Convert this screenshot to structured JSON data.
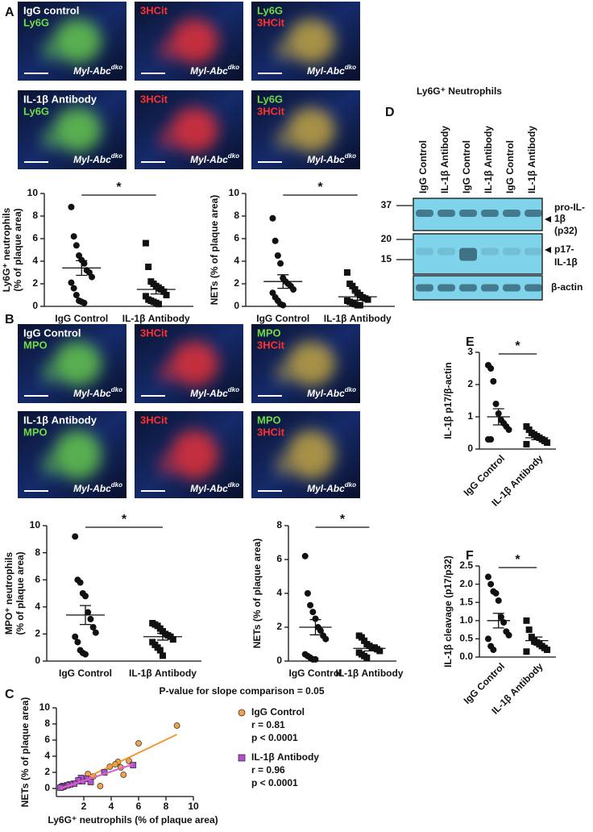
{
  "panels": [
    "A",
    "B",
    "C",
    "D",
    "E",
    "F"
  ],
  "strain": {
    "name": "Myl-Abc",
    "sup": "dko"
  },
  "microscopy": [
    {
      "rows": [
        [
          {
            "labels": [
              {
                "text": "IgG control",
                "color": "#ffffff"
              },
              {
                "text": "Ly6G",
                "color": "#6fdc4a"
              }
            ]
          },
          {
            "labels": [
              {
                "text": "3HCit",
                "color": "#ff3030"
              }
            ]
          },
          {
            "labels": [
              {
                "text": "Ly6G",
                "color": "#6fdc4a"
              },
              {
                "text": "3HCit",
                "color": "#ff3030"
              }
            ]
          }
        ],
        [
          {
            "labels": [
              {
                "text": "IL-1β Antibody",
                "color": "#ffffff"
              },
              {
                "text": "Ly6G",
                "color": "#6fdc4a"
              }
            ]
          },
          {
            "labels": [
              {
                "text": "3HCit",
                "color": "#ff3030"
              }
            ]
          },
          {
            "labels": [
              {
                "text": "Ly6G",
                "color": "#6fdc4a"
              },
              {
                "text": "3HCit",
                "color": "#ff3030"
              }
            ]
          }
        ]
      ]
    },
    {
      "rows": [
        [
          {
            "labels": [
              {
                "text": "IgG Control",
                "color": "#ffffff"
              },
              {
                "text": "MPO",
                "color": "#6fdc4a"
              }
            ]
          },
          {
            "labels": [
              {
                "text": "3HCit",
                "color": "#ff3030"
              }
            ]
          },
          {
            "labels": [
              {
                "text": "MPO",
                "color": "#6fdc4a"
              },
              {
                "text": "3HCit",
                "color": "#ff3030"
              }
            ]
          }
        ],
        [
          {
            "labels": [
              {
                "text": "IL-1β Antibody",
                "color": "#ffffff"
              },
              {
                "text": "MPO",
                "color": "#6fdc4a"
              }
            ]
          },
          {
            "labels": [
              {
                "text": "3HCit",
                "color": "#ff3030"
              }
            ]
          },
          {
            "labels": [
              {
                "text": "MPO",
                "color": "#6fdc4a"
              },
              {
                "text": "3HCit",
                "color": "#ff3030"
              }
            ]
          }
        ]
      ]
    }
  ],
  "western_blot": {
    "title": "Ly6G⁺ Neutrophils",
    "lanes": [
      "IgG Control",
      "IL-1β Antibody",
      "IgG Control",
      "IL-1β Antibody",
      "IgG Control",
      "IL-1β Antibody"
    ],
    "markers": [
      "37",
      "20",
      "15"
    ],
    "bands": [
      [
        "pro-IL-",
        "1β",
        "(p32)"
      ],
      [
        "p17-",
        "IL-1β"
      ],
      [
        "β-actin"
      ]
    ]
  },
  "chart_data": [
    {
      "type": "dotplot",
      "categories": [
        "IgG Control",
        "IL-1β Antibody"
      ],
      "ylabel": [
        "Ly6G⁺ neutrophils",
        "(% of plaque area)"
      ],
      "ylim": [
        0,
        10
      ],
      "yticks": [
        0,
        2,
        4,
        6,
        8,
        10
      ],
      "markers": [
        "circle",
        "square"
      ],
      "significance": "*",
      "label_rotation": 0,
      "values": [
        [
          8.8,
          6.2,
          5.4,
          4.5,
          4.1,
          3.8,
          3.2,
          3.0,
          2.6,
          2.1,
          1.6,
          1.0,
          0.5,
          0.4,
          0.3
        ],
        [
          5.6,
          3.5,
          2.2,
          2.0,
          1.8,
          1.6,
          1.5,
          1.3,
          1.0,
          0.9,
          0.6,
          0.5,
          0.4,
          0.3,
          0.2
        ]
      ],
      "means": [
        3.4,
        1.5
      ],
      "errors": [
        0.65,
        0.4
      ]
    },
    {
      "type": "dotplot",
      "categories": [
        "IgG Control",
        "IL-1β Antibody"
      ],
      "ylabel": [
        "NETs (% of plaque area)"
      ],
      "ylim": [
        0,
        10
      ],
      "yticks": [
        0,
        2,
        4,
        6,
        8,
        10
      ],
      "markers": [
        "circle",
        "square"
      ],
      "significance": "*",
      "label_rotation": 0,
      "values": [
        [
          7.8,
          5.8,
          4.5,
          3.8,
          2.5,
          2.2,
          2.0,
          1.8,
          1.5,
          1.2,
          0.8,
          0.5,
          0.2,
          0.1
        ],
        [
          3.0,
          2.0,
          1.8,
          1.5,
          1.2,
          1.0,
          0.8,
          0.7,
          0.6,
          0.5,
          0.4,
          0.3,
          0.2,
          0.1,
          0.1
        ]
      ],
      "means": [
        2.2,
        0.85
      ],
      "errors": [
        0.6,
        0.3
      ]
    },
    {
      "type": "dotplot",
      "categories": [
        "IgG Control",
        "IL-1β Antibody"
      ],
      "ylabel": [
        "MPO⁺ neutrophils",
        "(% of plaque area)"
      ],
      "ylim": [
        0,
        10
      ],
      "yticks": [
        0,
        2,
        4,
        6,
        8,
        10
      ],
      "markers": [
        "circle",
        "square"
      ],
      "significance": "*",
      "label_rotation": 0,
      "values": [
        [
          9.2,
          6.0,
          5.8,
          5.0,
          4.8,
          3.6,
          3.1,
          2.5,
          2.1,
          1.8,
          1.4,
          0.8,
          0.6,
          0.5
        ],
        [
          2.8,
          2.7,
          2.6,
          2.4,
          2.2,
          2.0,
          1.9,
          1.8,
          1.6,
          1.4,
          1.2,
          1.0,
          0.8,
          0.4
        ]
      ],
      "means": [
        3.4,
        1.8
      ],
      "errors": [
        0.7,
        0.25
      ]
    },
    {
      "type": "dotplot",
      "categories": [
        "IgG Control",
        "IL-1β Antibody"
      ],
      "ylabel": [
        "NETs (% of plaque area)"
      ],
      "ylim": [
        0,
        8
      ],
      "yticks": [
        0,
        2,
        4,
        6,
        8
      ],
      "markers": [
        "circle",
        "square"
      ],
      "significance": "*",
      "label_rotation": 0,
      "values": [
        [
          6.2,
          4.0,
          3.3,
          2.9,
          2.5,
          2.0,
          1.8,
          1.5,
          1.3,
          0.4,
          0.3,
          0.2,
          0.1,
          0.1
        ],
        [
          1.5,
          1.4,
          1.2,
          1.0,
          0.9,
          0.8,
          0.8,
          0.7,
          0.6,
          0.5,
          0.4,
          0.3,
          0.2
        ]
      ],
      "means": [
        2.0,
        0.75
      ],
      "errors": [
        0.45,
        0.15
      ]
    },
    {
      "type": "dotplot",
      "categories": [
        "IgG Control",
        "IL-1β Antibody"
      ],
      "ylabel": [
        "IL-1β p17/β-actin"
      ],
      "ylim": [
        0,
        3
      ],
      "yticks": [
        0,
        1,
        2,
        3
      ],
      "markers": [
        "circle",
        "square"
      ],
      "significance": "*",
      "label_rotation": 45,
      "values": [
        [
          2.6,
          2.5,
          2.1,
          1.4,
          1.1,
          0.9,
          0.8,
          0.7,
          0.6,
          0.3,
          0.3
        ],
        [
          0.7,
          0.6,
          0.5,
          0.45,
          0.4,
          0.35,
          0.3,
          0.25,
          0.2,
          0.15
        ]
      ],
      "means": [
        1.0,
        0.35
      ],
      "errors": [
        0.25,
        0.06
      ]
    },
    {
      "type": "dotplot",
      "categories": [
        "IgG Control",
        "IL-1β Antibody"
      ],
      "ylabel": [
        "IL-1β cleavage (p17/p32)"
      ],
      "ylim": [
        0,
        2.5
      ],
      "yticks": [
        {
          "value": 0,
          "label": "0.0"
        },
        {
          "value": 0.5,
          "label": "0.5"
        },
        {
          "value": 1,
          "label": "1.0"
        },
        {
          "value": 1.5,
          "label": "1.5"
        },
        {
          "value": 2,
          "label": "2.0"
        },
        {
          "value": 2.5,
          "label": "2.5"
        }
      ],
      "markers": [
        "circle",
        "square"
      ],
      "significance": "*",
      "label_rotation": 45,
      "values": [
        [
          2.2,
          2.0,
          1.8,
          1.75,
          1.55,
          1.1,
          0.95,
          0.7,
          0.6,
          0.5,
          0.3,
          0.2
        ],
        [
          1.0,
          0.75,
          0.55,
          0.45,
          0.4,
          0.35,
          0.3,
          0.25,
          0.2,
          0.15
        ]
      ],
      "means": [
        1.0,
        0.45
      ],
      "errors": [
        0.2,
        0.1
      ]
    },
    {
      "type": "scatter",
      "title": "P-value for slope comparison = 0.05",
      "xlabel": "Ly6G⁺ neutrophils (% of plaque area)",
      "ylabel": [
        "NETs (% of plaque area)"
      ],
      "xlim": [
        0,
        10
      ],
      "xticks": [
        2,
        4,
        6,
        8,
        10
      ],
      "ylim": [
        -1,
        10
      ],
      "yticks": [
        0,
        2,
        4,
        6,
        8,
        10
      ],
      "series": [
        {
          "name": "IgG Control",
          "color": "#f4a24a",
          "line_color": "#f39a30",
          "marker": "circle",
          "stats": [
            "r = 0.81",
            "p < 0.0001"
          ],
          "x": [
            8.8,
            6.0,
            5.3,
            4.7,
            4.9,
            4.5,
            4.3,
            3.9,
            3.2,
            2.7,
            2.3,
            1.6,
            1.0,
            0.6,
            0.3
          ],
          "y": [
            7.8,
            5.6,
            3.4,
            2.6,
            1.7,
            3.3,
            3.0,
            2.7,
            0.3,
            1.5,
            1.8,
            0.9,
            0.5,
            0.2,
            0.1
          ],
          "fit_x": [
            0.3,
            8.8
          ],
          "fit_y": [
            -0.2,
            6.7
          ]
        },
        {
          "name": "IL-1β Antibody",
          "color": "#b04fd0",
          "line_color": "#e05cc8",
          "marker": "square",
          "stats": [
            "r = 0.96",
            "p < 0.0001"
          ],
          "x": [
            5.6,
            3.5,
            2.2,
            2.5,
            1.9,
            1.8,
            1.6,
            1.3,
            1.0,
            0.8,
            0.5,
            0.4,
            0.3
          ],
          "y": [
            2.9,
            2.0,
            1.2,
            0.8,
            0.9,
            1.3,
            1.0,
            0.6,
            0.5,
            0.4,
            0.3,
            0.2,
            0.1
          ],
          "fit_x": [
            0.3,
            5.6
          ],
          "fit_y": [
            0.0,
            3.0
          ]
        }
      ]
    }
  ]
}
